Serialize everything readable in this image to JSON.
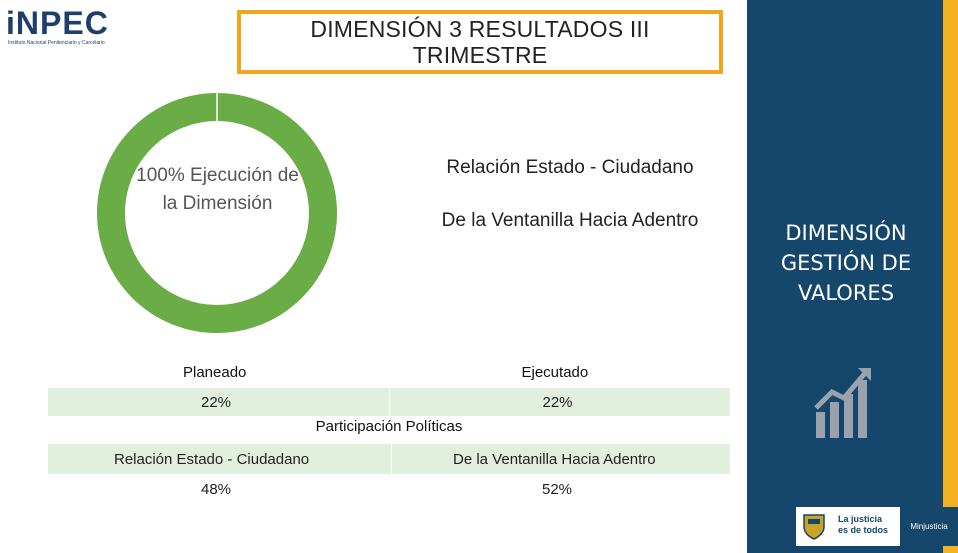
{
  "logo": {
    "name": "iNPEC",
    "subtitle": "Instituto Nacional Penitenciario y Carcelario"
  },
  "title": "DIMENSIÓN 3 RESULTADOS III TRIMESTRE",
  "donut": {
    "percent": 100,
    "label": "100% Ejecución de la Dimensión",
    "color": "#6aac46"
  },
  "subheading_1": "Relación Estado - Ciudadano",
  "subheading_2": "De la Ventanilla Hacia Adentro",
  "execution_table": {
    "headers": [
      "Planeado",
      "Ejecutado"
    ],
    "values": [
      "22%",
      "22%"
    ]
  },
  "participation_table": {
    "title": "Participación Políticas",
    "headers": [
      "Relación Estado - Ciudadano",
      "De la Ventanilla Hacia Adentro"
    ],
    "values": [
      "48%",
      "52%"
    ]
  },
  "side_panel": {
    "title": "DIMENSIÓN GESTIÓN DE VALORES",
    "icon": "growth-chart-icon",
    "colors": {
      "panel": "#15466b",
      "stripe": "#f2b11f"
    }
  },
  "footer_logo": {
    "text_line1": "La justicia",
    "text_line2": "es de todos",
    "ministry": "Minjusticia"
  }
}
